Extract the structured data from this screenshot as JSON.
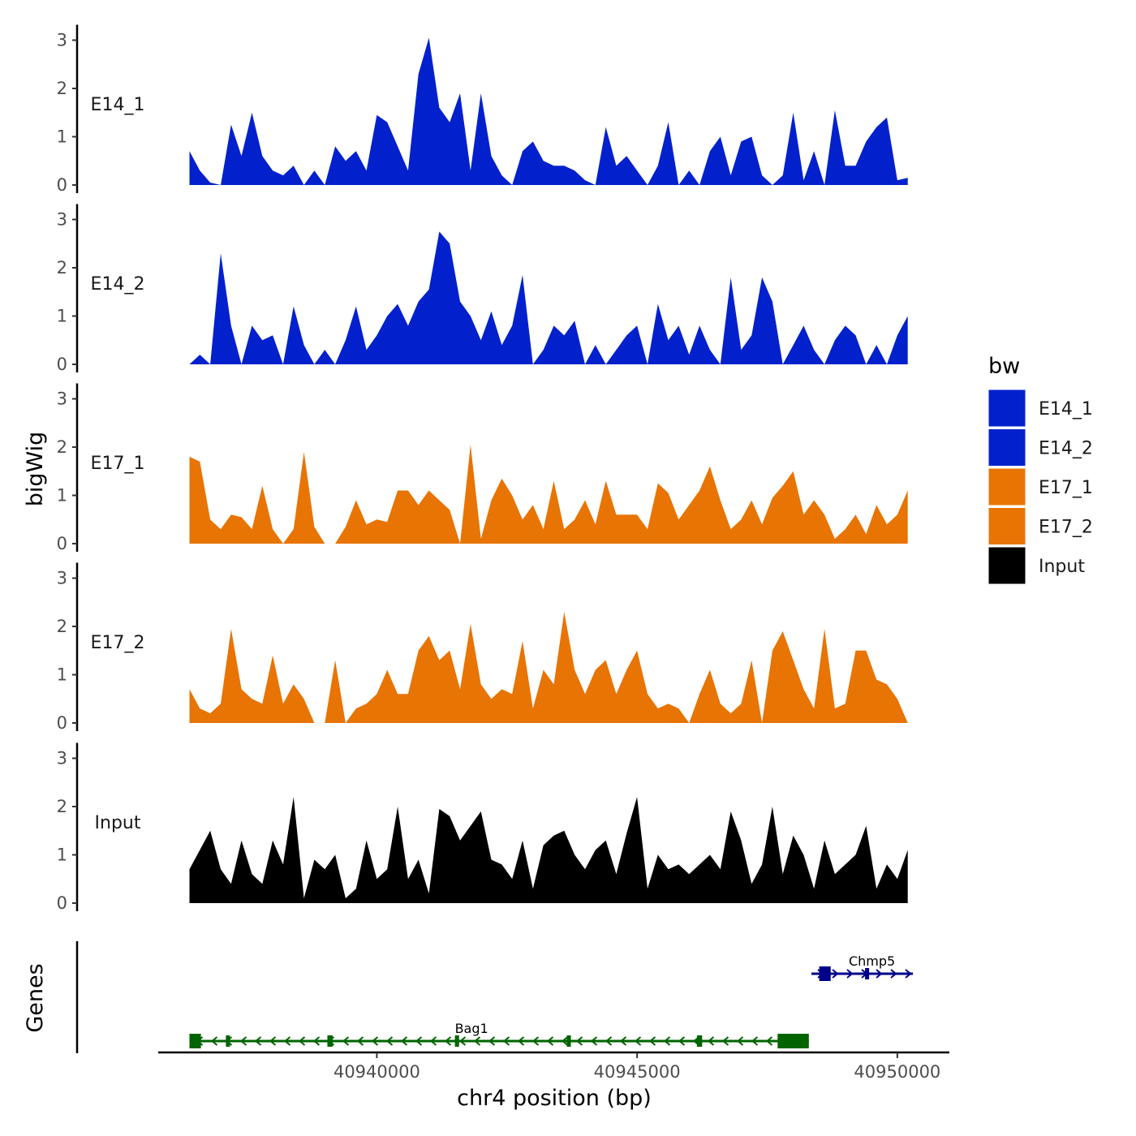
{
  "chart_data": {
    "type": "area",
    "chromosome": "chr4",
    "xlabel": "chr4 position (bp)",
    "ylabel_tracks": "bigWig",
    "ylabel_genes": "Genes",
    "xlim": [
      40935800,
      40951000
    ],
    "x_ticks": [
      40940000,
      40945000,
      40950000
    ],
    "x_tick_labels": [
      "40940000",
      "40945000",
      "40950000"
    ],
    "ylim": [
      0,
      3.2
    ],
    "y_ticks": [
      0,
      1,
      2,
      3
    ],
    "y_tick_labels": [
      "0",
      "1",
      "2",
      "3"
    ],
    "bin_x": [
      40936400,
      40936600,
      40936800,
      40937000,
      40937200,
      40937400,
      40937600,
      40937800,
      40938000,
      40938200,
      40938400,
      40938600,
      40938800,
      40939000,
      40939200,
      40939400,
      40939600,
      40939800,
      40940000,
      40940200,
      40940400,
      40940600,
      40940800,
      40941000,
      40941200,
      40941400,
      40941600,
      40941800,
      40942000,
      40942200,
      40942400,
      40942600,
      40942800,
      40943000,
      40943200,
      40943400,
      40943600,
      40943800,
      40944000,
      40944200,
      40944400,
      40944600,
      40944800,
      40945000,
      40945200,
      40945400,
      40945600,
      40945800,
      40946000,
      40946200,
      40946400,
      40946600,
      40946800,
      40947000,
      40947200,
      40947400,
      40947600,
      40947800,
      40948000,
      40948200,
      40948400,
      40948600,
      40948800,
      40949000,
      40949200,
      40949400,
      40949600,
      40949800,
      40950000,
      40950200
    ],
    "series": [
      {
        "name": "E14_1",
        "color": "#0221CC",
        "label": "E14_1",
        "values": [
          0.7,
          0.3,
          0.05,
          0.0,
          1.25,
          0.6,
          1.5,
          0.6,
          0.3,
          0.2,
          0.4,
          0.0,
          0.3,
          0.0,
          0.8,
          0.5,
          0.7,
          0.3,
          1.45,
          1.3,
          0.8,
          0.3,
          2.3,
          3.05,
          1.6,
          1.3,
          1.9,
          0.3,
          1.9,
          0.6,
          0.2,
          0.0,
          0.7,
          0.9,
          0.5,
          0.4,
          0.4,
          0.3,
          0.1,
          0.0,
          1.2,
          0.4,
          0.6,
          0.3,
          0.0,
          0.4,
          1.3,
          0.0,
          0.3,
          0.0,
          0.7,
          1.0,
          0.2,
          0.9,
          1.0,
          0.2,
          0.0,
          0.2,
          1.5,
          0.1,
          0.7,
          0.0,
          1.55,
          0.4,
          0.4,
          0.9,
          1.2,
          1.4,
          0.1,
          0.15
        ]
      },
      {
        "name": "E14_2",
        "color": "#0221CC",
        "label": "E14_2",
        "values": [
          0.0,
          0.2,
          0.0,
          2.3,
          0.8,
          0.0,
          0.8,
          0.5,
          0.6,
          0.0,
          1.2,
          0.4,
          0.0,
          0.3,
          0.0,
          0.5,
          1.2,
          0.3,
          0.6,
          1.0,
          1.25,
          0.8,
          1.3,
          1.55,
          2.75,
          2.5,
          1.3,
          1.0,
          0.5,
          1.1,
          0.4,
          0.8,
          1.85,
          0.0,
          0.3,
          0.8,
          0.6,
          0.9,
          0.0,
          0.4,
          0.0,
          0.3,
          0.6,
          0.8,
          0.0,
          1.25,
          0.5,
          0.8,
          0.2,
          0.8,
          0.3,
          0.0,
          1.8,
          0.3,
          0.6,
          1.8,
          1.3,
          0.0,
          0.4,
          0.8,
          0.3,
          0.0,
          0.5,
          0.8,
          0.6,
          0.0,
          0.4,
          0.0,
          0.6,
          1.0
        ]
      },
      {
        "name": "E17_1",
        "color": "#E87404",
        "label": "E17_1",
        "values": [
          1.8,
          1.7,
          0.5,
          0.3,
          0.6,
          0.55,
          0.3,
          1.2,
          0.3,
          0.0,
          0.3,
          1.9,
          0.35,
          0.0,
          0.0,
          0.35,
          0.9,
          0.4,
          0.5,
          0.45,
          1.1,
          1.1,
          0.8,
          1.1,
          0.9,
          0.7,
          0.0,
          2.05,
          0.1,
          0.9,
          1.35,
          1.0,
          0.5,
          0.8,
          0.3,
          1.3,
          0.3,
          0.5,
          0.9,
          0.4,
          1.3,
          0.6,
          0.6,
          0.6,
          0.3,
          1.25,
          1.05,
          0.5,
          0.8,
          1.1,
          1.6,
          0.9,
          0.3,
          0.5,
          0.9,
          0.4,
          0.95,
          1.2,
          1.5,
          0.6,
          0.9,
          0.6,
          0.1,
          0.3,
          0.6,
          0.2,
          0.8,
          0.4,
          0.6,
          1.1
        ]
      },
      {
        "name": "E17_2",
        "color": "#E87404",
        "label": "E17_2",
        "values": [
          0.7,
          0.3,
          0.2,
          0.4,
          1.95,
          0.7,
          0.5,
          0.4,
          1.4,
          0.4,
          0.8,
          0.5,
          0.0,
          0.0,
          1.3,
          0.0,
          0.3,
          0.4,
          0.6,
          1.1,
          0.6,
          0.6,
          1.5,
          1.8,
          1.3,
          1.5,
          0.7,
          2.05,
          0.8,
          0.5,
          0.7,
          0.6,
          1.7,
          0.3,
          1.1,
          0.8,
          2.3,
          1.1,
          0.6,
          1.1,
          1.3,
          0.6,
          1.1,
          1.5,
          0.6,
          0.3,
          0.4,
          0.3,
          0.0,
          0.6,
          1.1,
          0.4,
          0.2,
          0.4,
          1.3,
          0.0,
          1.5,
          1.9,
          1.3,
          0.7,
          0.3,
          1.95,
          0.3,
          0.4,
          1.5,
          1.5,
          0.9,
          0.8,
          0.5,
          0.0
        ]
      },
      {
        "name": "Input",
        "color": "#000000",
        "label": "Input",
        "values": [
          0.7,
          1.1,
          1.5,
          0.7,
          0.4,
          1.3,
          0.6,
          0.4,
          1.3,
          0.8,
          2.2,
          0.1,
          0.9,
          0.7,
          1.0,
          0.1,
          0.3,
          1.3,
          0.5,
          0.7,
          2.0,
          0.5,
          0.9,
          0.2,
          1.95,
          1.8,
          1.3,
          1.6,
          1.9,
          0.9,
          0.8,
          0.5,
          1.3,
          0.3,
          1.2,
          1.4,
          1.5,
          1.0,
          0.7,
          1.1,
          1.3,
          0.6,
          1.45,
          2.2,
          0.3,
          1.0,
          0.7,
          0.8,
          0.6,
          0.8,
          1.0,
          0.7,
          1.9,
          1.3,
          0.4,
          0.8,
          2.0,
          0.6,
          1.4,
          1.0,
          0.3,
          1.3,
          0.6,
          0.8,
          1.0,
          1.6,
          0.3,
          0.8,
          0.5,
          1.1
        ]
      }
    ],
    "genes": [
      {
        "name": "Bag1",
        "strand": "-",
        "color": "#006400",
        "start": 40936400,
        "end": 40948300,
        "exons": [
          [
            40936400,
            40936620
          ],
          [
            40937100,
            40937160
          ],
          [
            40939050,
            40939150
          ],
          [
            40941500,
            40941580
          ],
          [
            40943650,
            40943720
          ],
          [
            40946150,
            40946250
          ],
          [
            40947700,
            40948300
          ]
        ]
      },
      {
        "name": "Chmp5",
        "strand": "+",
        "color": "#00008B",
        "start": 40948350,
        "end": 40950300,
        "exons": [
          [
            40948500,
            40948720
          ],
          [
            40949380,
            40949450
          ]
        ]
      }
    ],
    "legend": {
      "title": "bw",
      "position": "right",
      "entries": [
        {
          "label": "E14_1",
          "color": "#0221CC"
        },
        {
          "label": "E14_2",
          "color": "#0221CC"
        },
        {
          "label": "E17_1",
          "color": "#E87404"
        },
        {
          "label": "E17_2",
          "color": "#E87404"
        },
        {
          "label": "Input",
          "color": "#000000"
        }
      ]
    }
  }
}
